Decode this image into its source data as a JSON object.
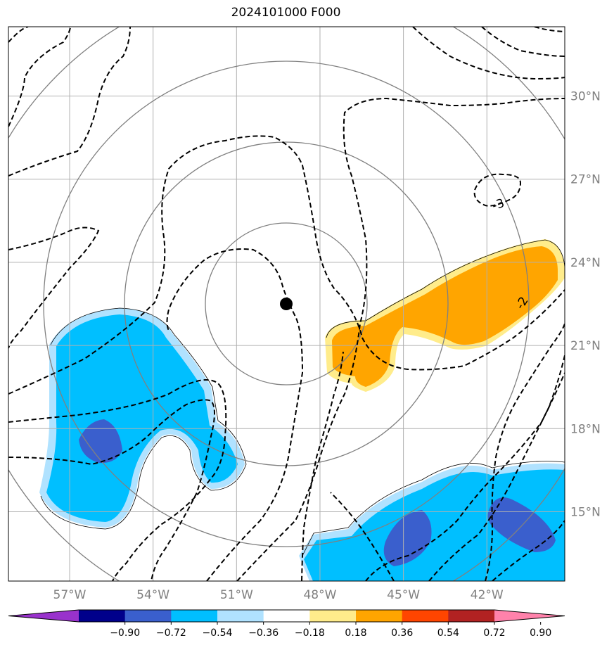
{
  "chart_data": {
    "type": "contour_map",
    "title": "2024101000 F000",
    "longitude_ticks": [
      "57°W",
      "54°W",
      "51°W",
      "48°W",
      "45°W",
      "42°W"
    ],
    "latitude_ticks": [
      "30°N",
      "27°N",
      "24°N",
      "21°N",
      "18°N",
      "15°N"
    ],
    "lon_values": [
      -57,
      -54,
      -51,
      -48,
      -45,
      -42
    ],
    "lat_values": [
      30,
      27,
      24,
      21,
      18,
      15
    ],
    "map_extent": {
      "lon": [
        -59.2,
        -39.2
      ],
      "lat": [
        12.5,
        32.5
      ]
    },
    "grid": true,
    "storm_center": {
      "lon": -49.0,
      "lat": 22.5
    },
    "range_rings_deg": [
      2.9,
      5.8,
      8.7
    ],
    "contour_labels": [
      "-3",
      "-2"
    ],
    "colorbar": {
      "ticks": [
        "−0.90",
        "−0.72",
        "−0.54",
        "−0.36",
        "−0.18",
        "0.18",
        "0.36",
        "0.54",
        "0.72",
        "0.90"
      ],
      "colors": [
        "#9932cc",
        "#00008b",
        "#3a5fcd",
        "#00bfff",
        "#b0e2ff",
        "#ffffff",
        "#ffec8b",
        "#ffa500",
        "#ff4500",
        "#b22222",
        "#ff82ab"
      ],
      "extend": "both"
    },
    "fill_colors": {
      "light_blue": "#b0e2ff",
      "deep_sky": "#00bfff",
      "royal_blue": "#3a5fcd",
      "light_gold": "#ffec8b",
      "orange": "#ffa500"
    }
  }
}
